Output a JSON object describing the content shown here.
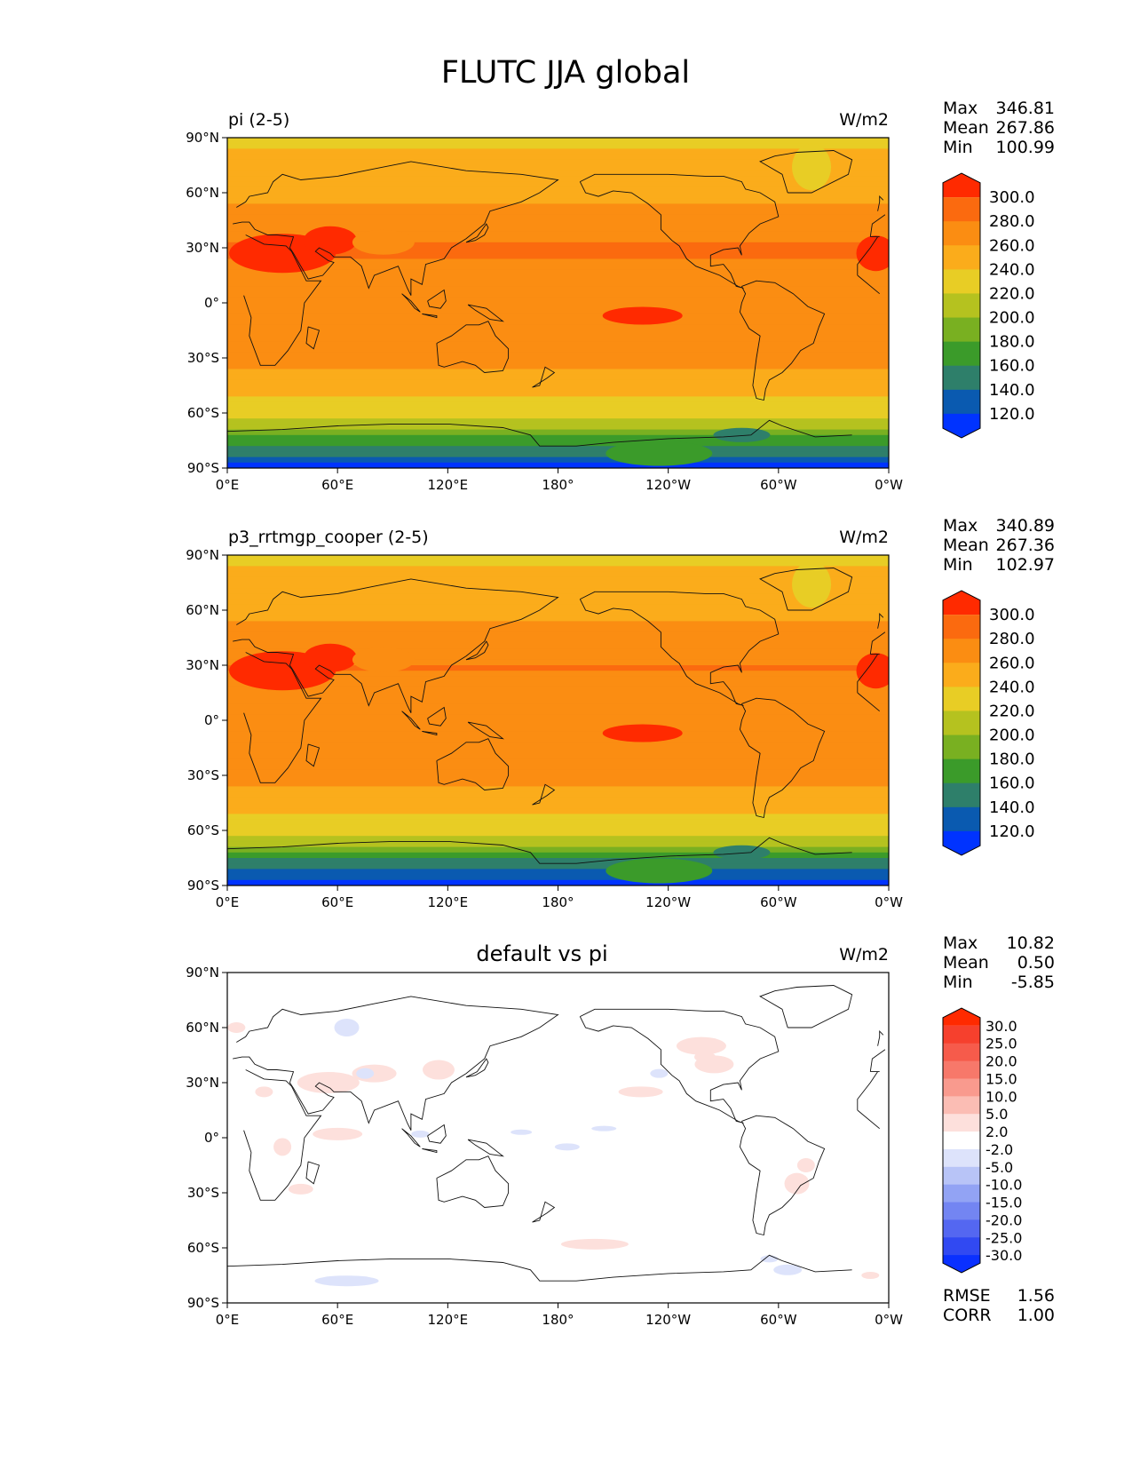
{
  "title": "FLUTC JJA global",
  "axes": {
    "lat_labels": [
      "90°N",
      "60°N",
      "30°N",
      "0°",
      "30°S",
      "60°S",
      "90°S"
    ],
    "lon_labels": [
      "0°E",
      "60°E",
      "120°E",
      "180°",
      "120°W",
      "60°W",
      "0°W"
    ]
  },
  "chart_data": [
    {
      "type": "heatmap",
      "subtitle_left": "pi (2-5)",
      "units": "W/m2",
      "stats": [
        {
          "label": "Max",
          "value": "346.81"
        },
        {
          "label": "Mean",
          "value": "267.86"
        },
        {
          "label": "Min",
          "value": "100.99"
        }
      ],
      "colorbar": {
        "levels": [
          "300.0",
          "280.0",
          "260.0",
          "240.0",
          "220.0",
          "200.0",
          "180.0",
          "160.0",
          "140.0",
          "120.0"
        ],
        "colors": [
          "#ff2a00",
          "#fb6a0f",
          "#fb8d12",
          "#fbac1b",
          "#e8cd25",
          "#b5c21f",
          "#79b021",
          "#3b9b2a",
          "#2e7f6a",
          "#0a5ab0",
          "#0033ff"
        ]
      },
      "zonal_profile": {
        "lat": [
          90,
          75,
          60,
          45,
          30,
          15,
          0,
          -15,
          -30,
          -45,
          -60,
          -67,
          -72,
          -80,
          -90
        ],
        "value": [
          237,
          245,
          256,
          266,
          282,
          276,
          265,
          272,
          266,
          250,
          228,
          208,
          175,
          150,
          110
        ]
      }
    },
    {
      "type": "heatmap",
      "subtitle_left": "p3_rrtmgp_cooper (2-5)",
      "units": "W/m2",
      "stats": [
        {
          "label": "Max",
          "value": "340.89"
        },
        {
          "label": "Mean",
          "value": "267.36"
        },
        {
          "label": "Min",
          "value": "102.97"
        }
      ],
      "colorbar": {
        "levels": [
          "300.0",
          "280.0",
          "260.0",
          "240.0",
          "220.0",
          "200.0",
          "180.0",
          "160.0",
          "140.0",
          "120.0"
        ],
        "colors": [
          "#ff2a00",
          "#fb6a0f",
          "#fb8d12",
          "#fbac1b",
          "#e8cd25",
          "#b5c21f",
          "#79b021",
          "#3b9b2a",
          "#2e7f6a",
          "#0a5ab0",
          "#0033ff"
        ]
      },
      "zonal_profile": {
        "lat": [
          90,
          75,
          60,
          45,
          30,
          15,
          0,
          -15,
          -30,
          -45,
          -60,
          -67,
          -72,
          -80,
          -90
        ],
        "value": [
          236,
          244,
          255,
          265,
          281,
          275,
          264,
          271,
          265,
          249,
          227,
          207,
          174,
          149,
          110
        ]
      }
    },
    {
      "type": "heatmap",
      "subtitle_center": "default vs pi",
      "units": "W/m2",
      "stats": [
        {
          "label": "Max",
          "value": "10.82"
        },
        {
          "label": "Mean",
          "value": "0.50"
        },
        {
          "label": "Min",
          "value": "-5.85"
        }
      ],
      "colorbar": {
        "levels": [
          "30.0",
          "25.0",
          "20.0",
          "15.0",
          "10.0",
          "5.0",
          "2.0",
          "-2.0",
          "-5.0",
          "-10.0",
          "-15.0",
          "-20.0",
          "-25.0",
          "-30.0"
        ],
        "colors": [
          "#ff2a00",
          "#f6402d",
          "#f65b4b",
          "#f7786a",
          "#f99a8e",
          "#fbbdb4",
          "#fde0dc",
          "#ffffff",
          "#dde3fb",
          "#b8c4f7",
          "#92a3f4",
          "#7385f2",
          "#5467f1",
          "#3149f2",
          "#0a30ff"
        ]
      },
      "footer": [
        {
          "label": "RMSE",
          "value": "1.56"
        },
        {
          "label": "CORR",
          "value": "1.00"
        }
      ]
    }
  ]
}
